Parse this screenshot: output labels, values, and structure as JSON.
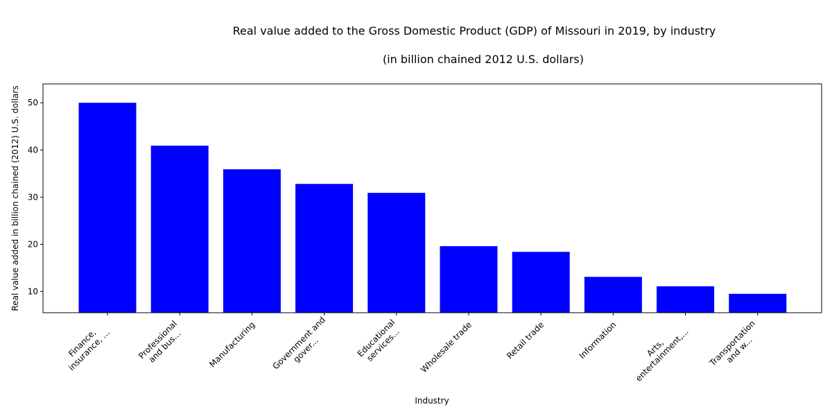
{
  "chart_data": {
    "type": "bar",
    "title": "Real value added to the Gross Domestic Product (GDP) of Missouri in 2019, by industry",
    "subtitle": "(in billion chained 2012 U.S. dollars)",
    "xlabel": "Industry",
    "ylabel": "Real value added in billion chained (2012) U.S. dollars",
    "categories": [
      [
        "Finance,",
        "insurance, ..."
      ],
      [
        "Professional",
        "and bus..."
      ],
      [
        "Manufacturing"
      ],
      [
        "Government and",
        "gover..."
      ],
      [
        "Educational",
        "services..."
      ],
      [
        "Wholesale trade"
      ],
      [
        "Retail trade"
      ],
      [
        "Information"
      ],
      [
        "Arts,",
        "entertainment,..."
      ],
      [
        "Transportation",
        "and w..."
      ]
    ],
    "values": [
      50.0,
      40.9,
      35.9,
      32.8,
      30.9,
      19.6,
      18.4,
      13.1,
      11.1,
      9.5
    ],
    "ylim": [
      5.5,
      54.0
    ],
    "yticks": [
      10,
      20,
      30,
      40,
      50
    ],
    "bar_color": "#0000ff",
    "grid": false,
    "legend": "none"
  }
}
